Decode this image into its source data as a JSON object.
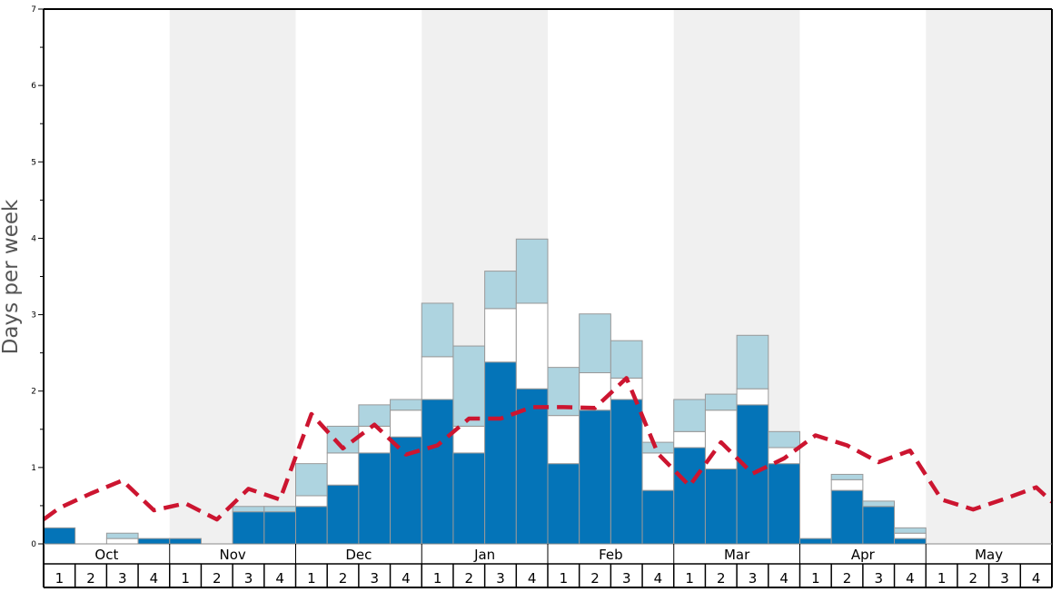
{
  "chart_data": {
    "type": "bar",
    "ylabel": "Days per week",
    "ylim": [
      0,
      7
    ],
    "y_ticks": [
      "0",
      "1",
      "2",
      "3",
      "4",
      "5",
      "6",
      "7"
    ],
    "months": [
      "Oct",
      "Nov",
      "Dec",
      "Jan",
      "Feb",
      "Mar",
      "Apr",
      "May"
    ],
    "week_labels": [
      "1",
      "2",
      "3",
      "4"
    ],
    "shaded_months": [
      "Nov",
      "Jan",
      "Mar",
      "May"
    ],
    "colors": {
      "bottom": "#0474b8",
      "middle": "#ffffff",
      "top": "#aed4e0",
      "line": "#cc1530",
      "band": "#f0f0f0",
      "bar_edge": "#999999"
    },
    "stack_tops": [
      [
        0.21,
        0.21,
        0.21
      ],
      [
        0,
        0,
        0
      ],
      [
        0,
        0.07,
        0.14
      ],
      [
        0.07,
        0.07,
        0.07
      ],
      [
        0.07,
        0.07,
        0.07
      ],
      [
        0,
        0,
        0
      ],
      [
        0.42,
        0.42,
        0.49
      ],
      [
        0.42,
        0.42,
        0.49
      ],
      [
        0.49,
        0.63,
        1.05
      ],
      [
        0.77,
        1.19,
        1.54
      ],
      [
        1.19,
        1.54,
        1.82
      ],
      [
        1.4,
        1.75,
        1.89
      ],
      [
        1.89,
        2.45,
        3.15
      ],
      [
        1.19,
        1.54,
        2.59
      ],
      [
        2.38,
        3.08,
        3.57
      ],
      [
        2.03,
        3.15,
        3.99
      ],
      [
        1.05,
        1.68,
        2.31
      ],
      [
        1.75,
        2.24,
        3.01
      ],
      [
        1.89,
        2.17,
        2.66
      ],
      [
        0.7,
        1.19,
        1.33
      ],
      [
        1.26,
        1.47,
        1.89
      ],
      [
        0.98,
        1.75,
        1.96
      ],
      [
        1.82,
        2.03,
        2.73
      ],
      [
        1.05,
        1.26,
        1.47
      ],
      [
        0.07,
        0.07,
        0.07
      ],
      [
        0.7,
        0.84,
        0.91
      ],
      [
        0.49,
        0.49,
        0.56
      ],
      [
        0.07,
        0.14,
        0.21
      ],
      [
        0,
        0,
        0
      ],
      [
        0,
        0,
        0
      ],
      [
        0,
        0,
        0
      ],
      [
        0,
        0,
        0
      ]
    ],
    "line_points": [
      [
        0.0,
        0.32
      ],
      [
        0.5,
        0.47
      ],
      [
        1.5,
        0.66
      ],
      [
        2.5,
        0.83
      ],
      [
        3.5,
        0.44
      ],
      [
        4.5,
        0.53
      ],
      [
        5.5,
        0.32
      ],
      [
        6.5,
        0.72
      ],
      [
        7.5,
        0.58
      ],
      [
        8.5,
        1.7
      ],
      [
        9.5,
        1.25
      ],
      [
        10.5,
        1.56
      ],
      [
        11.5,
        1.17
      ],
      [
        12.5,
        1.29
      ],
      [
        13.5,
        1.64
      ],
      [
        14.5,
        1.64
      ],
      [
        15.5,
        1.79
      ],
      [
        16.5,
        1.79
      ],
      [
        17.5,
        1.78
      ],
      [
        18.5,
        2.17
      ],
      [
        19.5,
        1.18
      ],
      [
        20.5,
        0.76
      ],
      [
        21.5,
        1.33
      ],
      [
        22.5,
        0.92
      ],
      [
        23.5,
        1.12
      ],
      [
        24.5,
        1.42
      ],
      [
        25.5,
        1.29
      ],
      [
        26.5,
        1.07
      ],
      [
        27.5,
        1.22
      ],
      [
        28.5,
        0.58
      ],
      [
        29.5,
        0.45
      ],
      [
        30.5,
        0.59
      ],
      [
        31.5,
        0.74
      ],
      [
        32.0,
        0.55
      ]
    ]
  }
}
